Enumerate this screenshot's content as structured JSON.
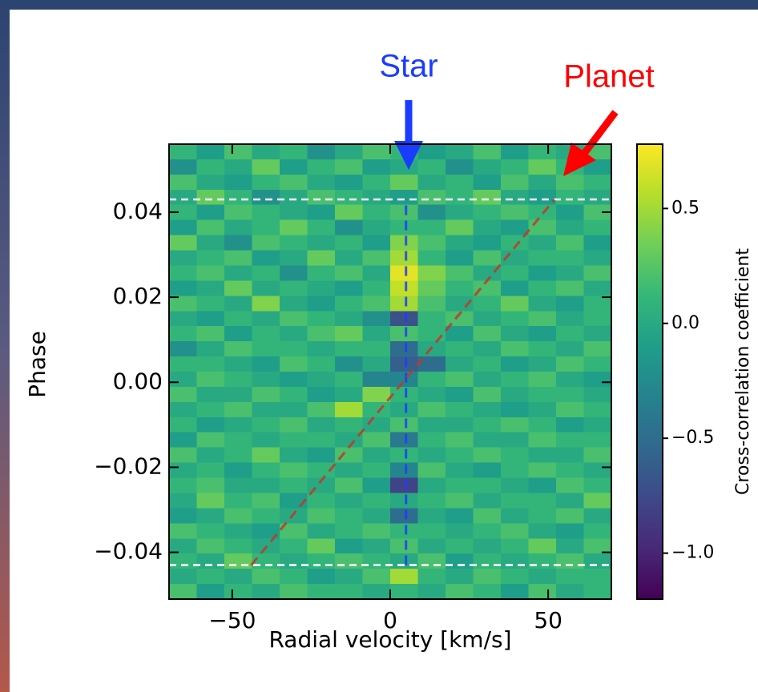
{
  "chart_data": {
    "type": "heatmap",
    "annotations": [
      {
        "text": "Star",
        "color": "#1a3cff"
      },
      {
        "text": "Planet",
        "color": "#ff0000"
      }
    ],
    "xlabel": "Radial velocity [km/s]",
    "ylabel": "Phase",
    "colorbar_label": "Cross-correlation coefficient",
    "colormap": "viridis",
    "xlim": [
      -70,
      70
    ],
    "ylim": [
      -0.051,
      0.056
    ],
    "clim": [
      -1.2,
      0.78
    ],
    "xticks": [
      {
        "value": -50,
        "label": "−50"
      },
      0,
      50
    ],
    "yticks": [
      {
        "value": -0.04,
        "label": "−0.04"
      },
      {
        "value": -0.02,
        "label": "−0.02"
      },
      {
        "value": 0,
        "label": "0.00"
      },
      0.02,
      0.04
    ],
    "cticks": [
      {
        "value": -1.0,
        "label": "−1.0"
      },
      {
        "value": -0.5,
        "label": "−0.5"
      },
      {
        "value": 0,
        "label": "0.0"
      },
      0.5
    ],
    "hlines": [
      0.043,
      -0.043
    ],
    "star_line": {
      "color": "#1f3cff",
      "x": [
        5,
        5
      ],
      "y": [
        -0.043,
        0.043
      ]
    },
    "planet_line": {
      "color": "#c0392b",
      "x": [
        -44,
        52
      ],
      "y": [
        -0.043,
        0.043
      ]
    },
    "z": [
      [
        0.1,
        -0.1,
        0.2,
        0.0,
        0.1,
        -0.2,
        0.0,
        0.2,
        0.1,
        -0.1,
        0.0,
        0.2,
        -0.1,
        0.1,
        0.0,
        0.2
      ],
      [
        -0.2,
        0.1,
        0.0,
        0.3,
        -0.1,
        0.1,
        0.2,
        -0.1,
        0.0,
        0.1,
        -0.2,
        0.0,
        0.1,
        0.3,
        0.1,
        -0.1
      ],
      [
        0.2,
        0.0,
        -0.1,
        0.1,
        0.2,
        0.0,
        -0.1,
        0.1,
        0.3,
        0.0,
        0.1,
        -0.1,
        0.2,
        0.0,
        0.2,
        0.1
      ],
      [
        0.0,
        0.3,
        0.1,
        -0.2,
        0.0,
        0.2,
        0.1,
        0.0,
        -0.1,
        0.2,
        0.1,
        0.3,
        0.0,
        -0.1,
        0.1,
        0.0
      ],
      [
        0.1,
        -0.1,
        0.2,
        0.1,
        0.0,
        -0.1,
        0.3,
        0.1,
        0.2,
        -0.2,
        0.0,
        0.1,
        0.2,
        0.1,
        -0.1,
        0.2
      ],
      [
        -0.1,
        0.2,
        0.0,
        0.1,
        0.3,
        0.1,
        -0.2,
        0.0,
        0.1,
        0.1,
        0.3,
        0.0,
        -0.1,
        0.2,
        0.0,
        0.1
      ],
      [
        0.3,
        0.0,
        -0.2,
        0.2,
        0.1,
        0.0,
        0.1,
        -0.1,
        0.4,
        0.2,
        0.0,
        -0.1,
        0.1,
        0.0,
        0.2,
        -0.1
      ],
      [
        0.0,
        0.1,
        0.2,
        -0.1,
        0.0,
        0.3,
        0.0,
        0.2,
        0.5,
        0.1,
        -0.1,
        0.2,
        0.0,
        0.1,
        0.1,
        0.0
      ],
      [
        0.1,
        0.2,
        0.0,
        0.1,
        -0.2,
        0.1,
        0.2,
        0.0,
        0.7,
        0.4,
        0.2,
        0.0,
        0.1,
        -0.1,
        0.0,
        0.2
      ],
      [
        -0.1,
        0.0,
        0.3,
        0.0,
        0.1,
        0.0,
        -0.1,
        0.1,
        0.6,
        0.3,
        0.1,
        0.2,
        -0.1,
        0.1,
        0.2,
        0.0
      ],
      [
        0.2,
        0.1,
        0.0,
        0.4,
        0.0,
        -0.1,
        0.1,
        0.2,
        0.5,
        0.2,
        0.0,
        0.1,
        0.3,
        0.0,
        -0.1,
        0.1
      ],
      [
        0.0,
        -0.1,
        0.1,
        0.0,
        0.2,
        0.1,
        0.0,
        -0.2,
        -0.7,
        0.1,
        0.2,
        0.0,
        0.1,
        0.2,
        0.0,
        0.1
      ],
      [
        0.1,
        0.2,
        -0.1,
        0.1,
        0.0,
        0.2,
        0.3,
        0.0,
        0.2,
        0.1,
        -0.1,
        0.2,
        0.0,
        -0.1,
        0.1,
        0.0
      ],
      [
        -0.2,
        0.0,
        0.2,
        0.1,
        0.1,
        0.0,
        0.1,
        0.1,
        -0.5,
        0.0,
        0.1,
        0.0,
        0.2,
        0.1,
        0.0,
        0.2
      ],
      [
        0.1,
        0.1,
        0.0,
        -0.1,
        0.2,
        0.1,
        -0.2,
        0.0,
        -0.6,
        -0.5,
        0.0,
        0.1,
        -0.1,
        0.0,
        0.2,
        0.1
      ],
      [
        0.0,
        0.2,
        0.1,
        0.0,
        -0.1,
        0.0,
        0.1,
        -0.3,
        -0.3,
        0.1,
        0.2,
        0.0,
        0.1,
        0.2,
        0.0,
        -0.1
      ],
      [
        0.2,
        0.0,
        0.0,
        0.2,
        0.1,
        -0.1,
        0.0,
        0.4,
        0.1,
        0.0,
        -0.1,
        0.2,
        0.0,
        0.1,
        0.1,
        0.0
      ],
      [
        0.0,
        0.1,
        0.2,
        0.0,
        0.0,
        0.2,
        0.5,
        0.1,
        0.0,
        0.2,
        0.1,
        0.0,
        -0.1,
        0.0,
        0.2,
        0.1
      ],
      [
        0.1,
        -0.1,
        0.0,
        0.1,
        0.2,
        0.0,
        0.1,
        0.0,
        0.2,
        0.0,
        0.0,
        0.1,
        0.2,
        0.1,
        -0.1,
        0.0
      ],
      [
        -0.1,
        0.2,
        0.1,
        0.0,
        0.1,
        0.1,
        0.0,
        0.2,
        -0.4,
        0.1,
        0.2,
        0.0,
        0.0,
        0.2,
        0.1,
        0.1
      ],
      [
        0.2,
        0.0,
        0.1,
        0.3,
        0.0,
        -0.1,
        0.2,
        0.0,
        0.1,
        0.0,
        0.1,
        0.2,
        0.1,
        0.0,
        0.0,
        0.2
      ],
      [
        0.0,
        0.1,
        -0.1,
        0.1,
        0.2,
        0.1,
        0.0,
        0.1,
        -0.3,
        0.2,
        0.0,
        -0.1,
        0.1,
        0.2,
        0.1,
        0.0
      ],
      [
        0.1,
        0.2,
        0.0,
        0.0,
        0.1,
        0.0,
        0.2,
        -0.1,
        -0.8,
        0.0,
        0.1,
        0.1,
        0.0,
        -0.1,
        0.2,
        0.1
      ],
      [
        0.0,
        0.3,
        0.1,
        0.2,
        -0.1,
        0.1,
        0.0,
        0.1,
        0.0,
        0.1,
        0.2,
        0.0,
        0.1,
        0.1,
        0.0,
        0.3
      ],
      [
        -0.1,
        0.0,
        0.2,
        0.1,
        0.0,
        0.2,
        0.1,
        0.0,
        -0.5,
        0.0,
        -0.1,
        0.2,
        0.0,
        0.1,
        0.2,
        0.0
      ],
      [
        0.2,
        0.1,
        0.0,
        -0.1,
        0.2,
        0.0,
        0.1,
        0.2,
        0.1,
        0.1,
        0.0,
        0.1,
        0.2,
        0.0,
        -0.1,
        0.1
      ],
      [
        0.0,
        0.2,
        0.1,
        0.0,
        0.1,
        0.3,
        -0.1,
        0.0,
        0.2,
        0.0,
        0.1,
        0.0,
        0.1,
        0.3,
        0.0,
        0.2
      ],
      [
        0.1,
        0.0,
        0.3,
        0.1,
        0.0,
        0.1,
        0.2,
        0.1,
        0.0,
        0.2,
        -0.1,
        0.1,
        0.0,
        0.1,
        0.2,
        0.0
      ],
      [
        0.0,
        0.1,
        0.0,
        0.2,
        0.1,
        -0.1,
        0.0,
        0.2,
        0.5,
        0.1,
        0.0,
        0.2,
        0.1,
        0.0,
        0.1,
        0.1
      ],
      [
        0.2,
        -0.1,
        0.1,
        0.0,
        0.2,
        0.1,
        0.1,
        0.0,
        0.1,
        0.0,
        0.2,
        0.1,
        -0.1,
        0.2,
        0.0,
        0.1
      ]
    ]
  }
}
